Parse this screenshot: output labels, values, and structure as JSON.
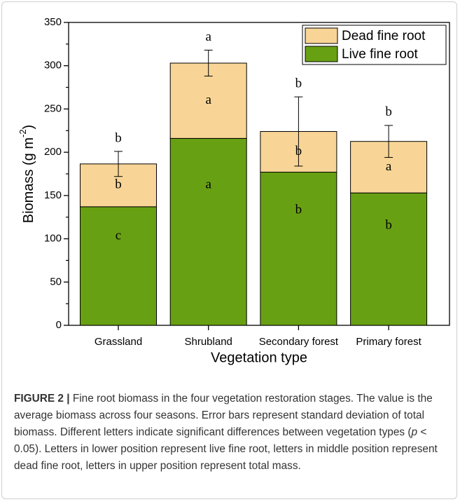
{
  "chart_data": {
    "type": "stacked-bar",
    "xlabel": "Vegetation type",
    "ylabel": [
      "Biomass (g m",
      "-2",
      ")"
    ],
    "categories": [
      "Grassland",
      "Shrubland",
      "Secondary forest",
      "Primary forest"
    ],
    "series": [
      {
        "name": "Live fine root",
        "color": "#68a013",
        "values": [
          137,
          216,
          177,
          153
        ],
        "letters": [
          "c",
          "a",
          "b",
          "b"
        ]
      },
      {
        "name": "Dead fine root",
        "color": "#f8d596",
        "values": [
          49.5,
          87,
          47,
          59.5
        ],
        "letters": [
          "b",
          "a",
          "b",
          "a"
        ]
      }
    ],
    "total_error": [
      14.5,
      15,
      40,
      18.5
    ],
    "total_letters": [
      "b",
      "a",
      "b",
      "b"
    ],
    "ylim": [
      0,
      350
    ],
    "yticks": [
      0,
      50,
      100,
      150,
      200,
      250,
      300,
      350
    ],
    "legend": "upper right"
  },
  "caption": {
    "label": "FIGURE 2 |",
    "parts": [
      " Fine root biomass in the four vegetation restoration stages. The value is the average biomass across four seasons. Error bars represent standard deviation of total biomass. Different letters indicate significant differences between vegetation types (",
      "p",
      " < 0.05). Letters in lower position represent live fine root, letters in middle position represent dead fine root, letters in upper position represent total mass."
    ]
  }
}
